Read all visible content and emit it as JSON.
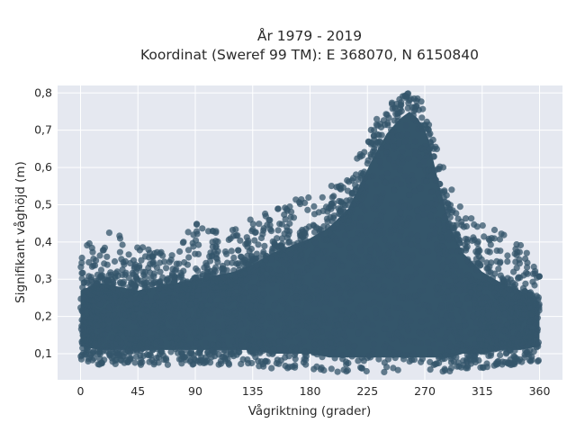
{
  "chart_data": {
    "type": "scatter",
    "title_lines": [
      "År 1979 - 2019",
      "Koordinat (Sweref 99 TM): E 368070, N 6150840"
    ],
    "xlabel": "Vågriktning (grader)",
    "ylabel": "Signifikant våghöjd (m)",
    "xlim": [
      -18,
      378
    ],
    "ylim": [
      0.03,
      0.82
    ],
    "x_ticks": [
      0,
      45,
      90,
      135,
      180,
      225,
      270,
      315,
      360
    ],
    "x_tick_labels": [
      "0",
      "45",
      "90",
      "135",
      "180",
      "225",
      "270",
      "315",
      "360"
    ],
    "y_ticks": [
      0.1,
      0.2,
      0.3,
      0.4,
      0.5,
      0.6,
      0.7,
      0.8
    ],
    "y_tick_labels": [
      "0,1",
      "0,2",
      "0,3",
      "0,4",
      "0,5",
      "0,6",
      "0,7",
      "0,8"
    ],
    "grid": true,
    "marker_color": "#34566b",
    "plot_bg": "#e5e8f0",
    "envelope": {
      "direction": [
        0,
        15,
        30,
        45,
        60,
        75,
        90,
        105,
        120,
        135,
        150,
        165,
        180,
        195,
        210,
        220,
        230,
        240,
        250,
        258,
        265,
        272,
        280,
        290,
        300,
        315,
        330,
        345,
        360
      ],
      "min_height": [
        0.08,
        0.07,
        0.07,
        0.07,
        0.07,
        0.07,
        0.07,
        0.07,
        0.07,
        0.07,
        0.06,
        0.06,
        0.06,
        0.05,
        0.05,
        0.05,
        0.05,
        0.05,
        0.05,
        0.05,
        0.05,
        0.05,
        0.05,
        0.05,
        0.06,
        0.06,
        0.07,
        0.07,
        0.08
      ],
      "max_height": [
        0.38,
        0.43,
        0.42,
        0.39,
        0.38,
        0.4,
        0.45,
        0.43,
        0.45,
        0.47,
        0.49,
        0.52,
        0.52,
        0.55,
        0.57,
        0.65,
        0.72,
        0.77,
        0.79,
        0.8,
        0.79,
        0.75,
        0.65,
        0.55,
        0.48,
        0.45,
        0.43,
        0.4,
        0.33
      ],
      "dense_max_height": [
        0.28,
        0.3,
        0.29,
        0.28,
        0.29,
        0.3,
        0.31,
        0.32,
        0.33,
        0.35,
        0.38,
        0.4,
        0.42,
        0.45,
        0.5,
        0.57,
        0.64,
        0.7,
        0.74,
        0.76,
        0.74,
        0.7,
        0.58,
        0.45,
        0.38,
        0.33,
        0.3,
        0.28,
        0.25
      ]
    }
  }
}
